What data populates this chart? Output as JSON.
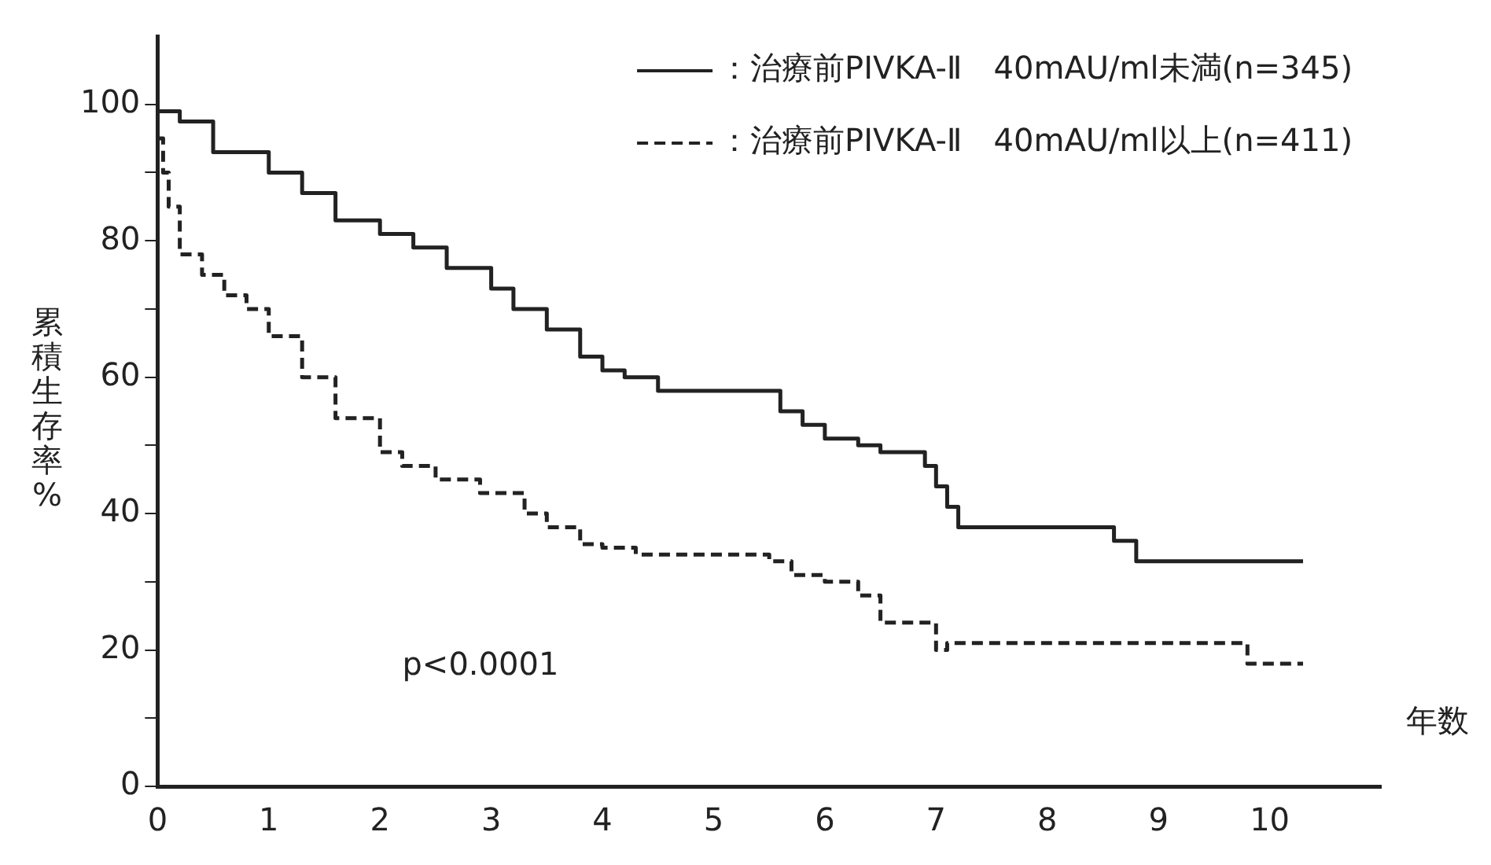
{
  "chart_data": {
    "type": "step",
    "ylabel": "累積生存率%",
    "xlabel": "年数",
    "annotations": [
      "p<0.0001"
    ],
    "x": [
      0,
      0.2,
      0.5,
      1.0,
      1.3,
      1.6,
      2.0,
      2.3,
      2.6,
      3.0,
      3.2,
      3.5,
      3.8,
      4.0,
      4.2,
      4.5,
      5.0,
      5.6,
      5.8,
      6.0,
      6.3,
      6.5,
      6.9,
      7.0,
      7.1,
      7.2,
      7.4,
      8.6,
      8.8,
      9.0,
      10.3
    ],
    "series": [
      {
        "name": "：治療前PIVKA-Ⅱ　40mAU/ml未満(n=345)",
        "color": "#222222",
        "line_style": "solid",
        "values": [
          100,
          99,
          97.5,
          93,
          90,
          87,
          83,
          81,
          79,
          76,
          73,
          70,
          67,
          63,
          61,
          60,
          58,
          58,
          55,
          53,
          51,
          50,
          49,
          47,
          44,
          41,
          38,
          38,
          36,
          33,
          33
        ]
      },
      {
        "name": "：治療前PIVKA-Ⅱ　40mAU/ml以上(n=411)",
        "color": "#222222",
        "line_style": "dashed",
        "x": [
          0,
          0.05,
          0.1,
          0.2,
          0.4,
          0.6,
          0.8,
          1.0,
          1.3,
          1.6,
          2.0,
          2.2,
          2.5,
          2.9,
          3.3,
          3.5,
          3.8,
          4.0,
          4.3,
          4.6,
          5.0,
          5.5,
          5.7,
          6.0,
          6.3,
          6.5,
          6.6,
          7.0,
          7.1,
          9.8,
          10.0,
          10.3
        ],
        "values": [
          100,
          95,
          90,
          85,
          78,
          75,
          72,
          70,
          66,
          60,
          54,
          49,
          47,
          45,
          43,
          40,
          38,
          35.5,
          35,
          34,
          34,
          34,
          33,
          31,
          30,
          28,
          24,
          24,
          20,
          21,
          18,
          18
        ]
      }
    ],
    "xlim": [
      0,
      11
    ],
    "xticks": [
      0,
      1,
      2,
      3,
      4,
      5,
      6,
      7,
      8,
      9,
      10
    ],
    "ylim": [
      0,
      110
    ],
    "yticks": [
      0,
      {
        "value": 10,
        "label": null
      },
      20,
      {
        "value": 30,
        "label": null
      },
      40,
      {
        "value": 50,
        "label": null
      },
      60,
      {
        "value": 70,
        "label": null
      },
      80,
      {
        "value": 90,
        "label": null
      },
      100
    ],
    "grid": false,
    "legend": "top right",
    "marker": "none"
  }
}
